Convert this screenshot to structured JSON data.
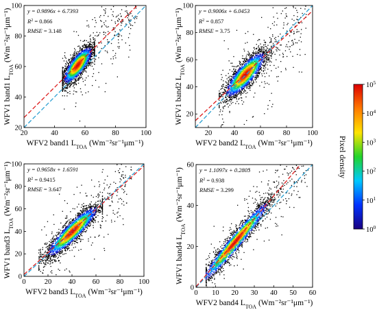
{
  "chart_data": [
    {
      "type": "scatter",
      "xlabel": "WFV2 band1 L",
      "xlabel_sub": "TOA",
      "xlabel_unit": " (Wm⁻²sr⁻¹μm⁻¹)",
      "ylabel": "WFV1 band1 L",
      "ylabel_sub": "TOA",
      "ylabel_unit": " (Wm⁻²sr⁻¹μm⁻¹)",
      "xlim": [
        20,
        100
      ],
      "ylim": [
        20,
        100
      ],
      "xticks": [
        20,
        40,
        60,
        80,
        100
      ],
      "yticks": [
        20,
        40,
        60,
        80,
        100
      ],
      "equation": "y = 0.9896x + 6.7393",
      "slope": 0.9896,
      "intercept": 6.7393,
      "r2_label": "R",
      "r2_value": " = 0.866",
      "rmse_label": "RMSE",
      "rmse_value": " = 3.148",
      "cloud": {
        "x_range": [
          45,
          66
        ],
        "peak": 55,
        "spread_x": 5,
        "spread_y": 4,
        "outlier_x_max": 95
      }
    },
    {
      "type": "scatter",
      "xlabel": "WFV2 band2 L",
      "xlabel_sub": "TOA",
      "xlabel_unit": " (Wm⁻²sr⁻¹μm⁻¹)",
      "ylabel": "WFV1 band2 L",
      "ylabel_sub": "TOA",
      "ylabel_unit": " (Wm⁻²sr⁻¹μm⁻¹)",
      "xlim": [
        10,
        100
      ],
      "ylim": [
        10,
        100
      ],
      "xticks": [
        20,
        40,
        60,
        80,
        100
      ],
      "yticks": [
        20,
        40,
        60,
        80,
        100
      ],
      "equation": "y = 0.9006x + 6.0453",
      "slope": 0.9006,
      "intercept": 6.0453,
      "r2_label": "R",
      "r2_value": " = 0.857",
      "rmse_label": "RMSE",
      "rmse_value": " = 3.75",
      "cloud": {
        "x_range": [
          28,
          68
        ],
        "peak": 48,
        "spread_x": 8,
        "spread_y": 5,
        "outlier_x_max": 95
      }
    },
    {
      "type": "scatter",
      "xlabel": "WFV2 band3 L",
      "xlabel_sub": "TOA",
      "xlabel_unit": " (Wm⁻²sr⁻¹μm⁻¹)",
      "ylabel": "WFV1 band3 L",
      "ylabel_sub": "TOA",
      "ylabel_unit": " (Wm⁻²sr⁻¹μm⁻¹)",
      "xlim": [
        0,
        100
      ],
      "ylim": [
        0,
        100
      ],
      "xticks": [
        0,
        20,
        40,
        60,
        80,
        100
      ],
      "yticks": [
        0,
        20,
        40,
        60,
        80,
        100
      ],
      "equation": "y = 0.9658x + 1.6591",
      "slope": 0.9658,
      "intercept": 1.6591,
      "r2_label": "R",
      "r2_value": " = 0.9415",
      "rmse_label": "RMSE",
      "rmse_value": " = 3.647",
      "cloud": {
        "x_range": [
          12,
          65
        ],
        "peak": 40,
        "spread_x": 11,
        "spread_y": 5,
        "outlier_x_max": 90
      }
    },
    {
      "type": "scatter",
      "xlabel": "WFV2 band4 L",
      "xlabel_sub": "TOA",
      "xlabel_unit": " (Wm⁻²sr⁻¹μm⁻¹)",
      "ylabel": "WFV1 band4 L",
      "ylabel_sub": "TOA",
      "ylabel_unit": " (Wm⁻²sr⁻¹μm⁻¹)",
      "xlim": [
        0,
        60
      ],
      "ylim": [
        0,
        60
      ],
      "xticks": [
        0,
        10,
        20,
        30,
        40,
        50,
        60
      ],
      "yticks": [
        0,
        20,
        40,
        60
      ],
      "equation": "y = 1.1097x + 0.2805",
      "slope": 1.1097,
      "intercept": 0.2805,
      "r2_label": "R",
      "r2_value": " = 0.938",
      "rmse_label": "RMSE",
      "rmse_value": " = 3.299",
      "cloud": {
        "x_range": [
          5,
          55
        ],
        "peak": 20,
        "spread_x": 9,
        "spread_y": 2.5,
        "outlier_x_max": 58
      }
    }
  ],
  "colorbar": {
    "label": "Pixel density",
    "ticks": [
      {
        "base": "10",
        "exp": "0"
      },
      {
        "base": "10",
        "exp": "1"
      },
      {
        "base": "10",
        "exp": "2"
      },
      {
        "base": "10",
        "exp": "3"
      },
      {
        "base": "10",
        "exp": "4"
      },
      {
        "base": "10",
        "exp": "5"
      }
    ],
    "stops": [
      "#1a0080",
      "#0033ff",
      "#00c8ff",
      "#22d42a",
      "#ffe400",
      "#ff7a00",
      "#dd0000"
    ]
  },
  "lines": {
    "fit_color": "#dd1d1d",
    "one_to_one_color": "#2aa0d2"
  }
}
